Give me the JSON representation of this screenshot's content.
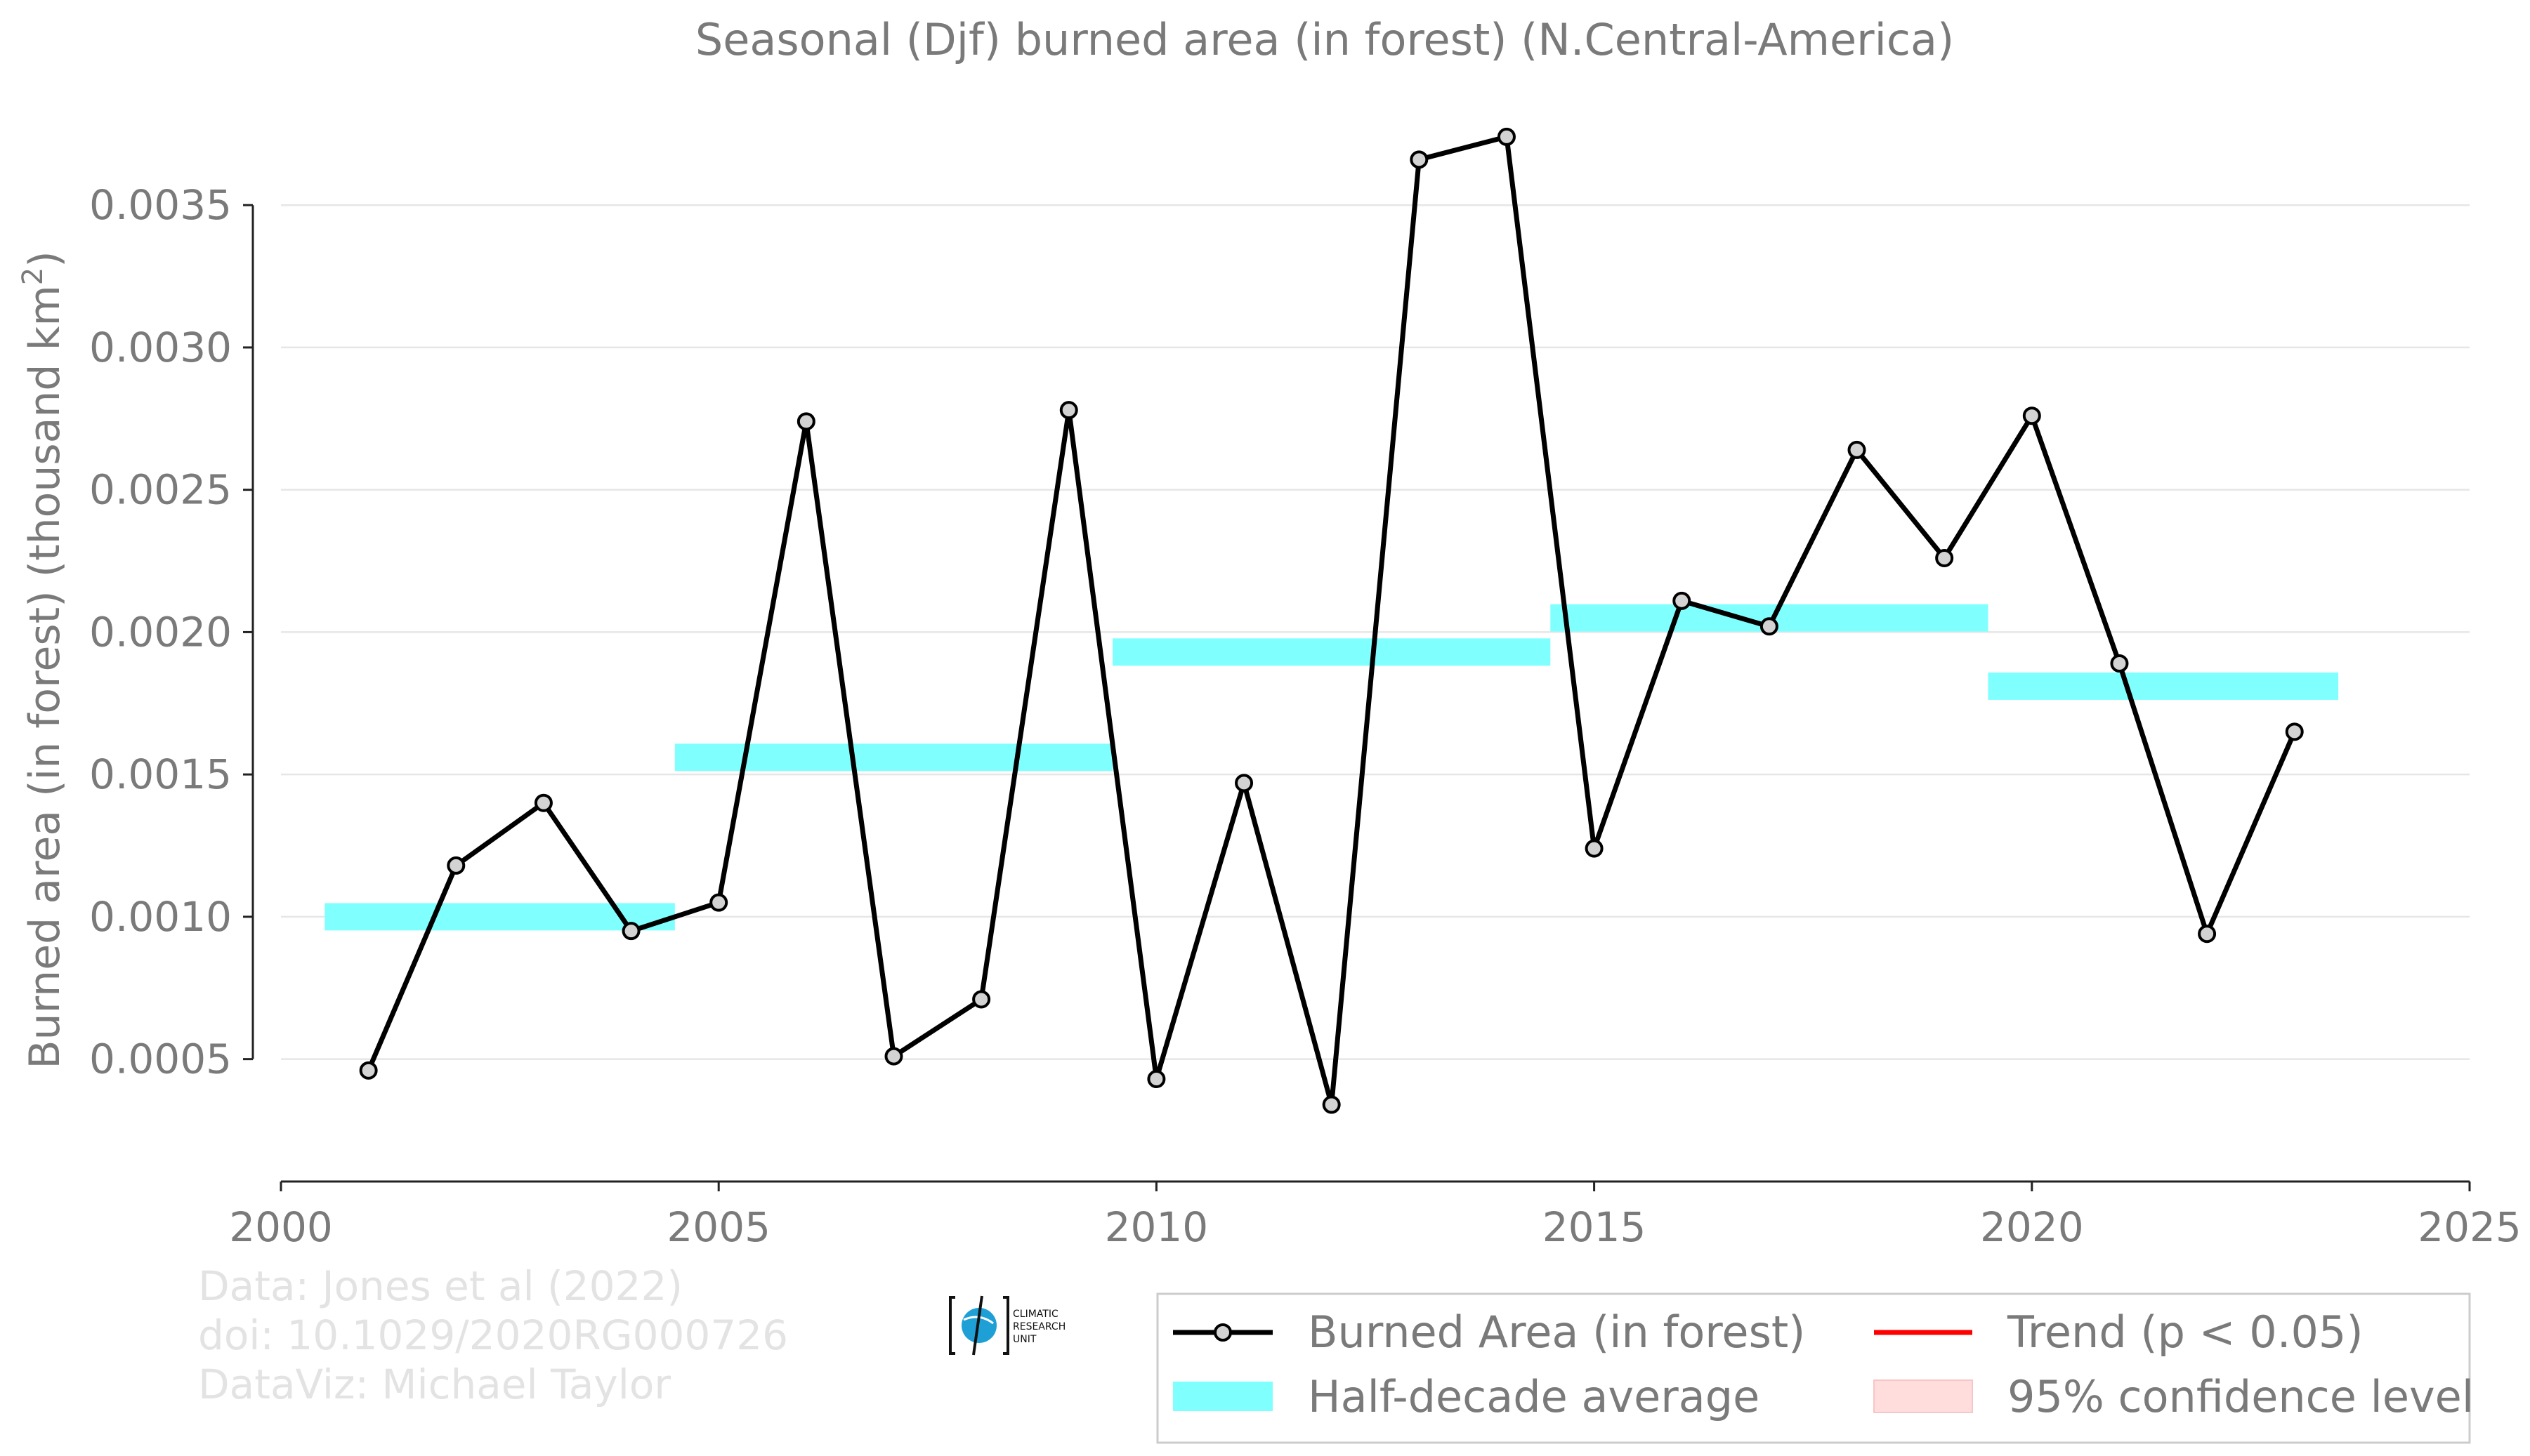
{
  "chart_data": {
    "type": "line",
    "title": "Seasonal (Djf) burned area (in forest) (N.Central-America)",
    "ylabel": "Burned area (in forest) (thousand km²)",
    "xlabel": "",
    "xlim": [
      2000,
      2025
    ],
    "ylim": [
      7e-05,
      0.0039
    ],
    "x_ticks": [
      2000,
      2005,
      2010,
      2015,
      2020,
      2025
    ],
    "y_ticks": [
      0.0005,
      0.001,
      0.0015,
      0.002,
      0.0025,
      0.003,
      0.0035
    ],
    "y_tick_labels": [
      "0.0005",
      "0.0010",
      "0.0015",
      "0.0020",
      "0.0025",
      "0.0030",
      "0.0035"
    ],
    "grid": "horizontal",
    "series": [
      {
        "name": "Burned Area (in forest)",
        "color": "#000000",
        "x": [
          2001,
          2002,
          2003,
          2004,
          2005,
          2006,
          2007,
          2008,
          2009,
          2010,
          2011,
          2012,
          2013,
          2014,
          2015,
          2016,
          2017,
          2018,
          2019,
          2020,
          2021,
          2022,
          2023
        ],
        "y": [
          0.00046,
          0.00118,
          0.0014,
          0.00095,
          0.00105,
          0.00274,
          0.00051,
          0.00071,
          0.00278,
          0.00043,
          0.00147,
          0.00034,
          0.00366,
          0.00374,
          0.00124,
          0.00211,
          0.00202,
          0.00264,
          0.00226,
          0.00276,
          0.00189,
          0.00094,
          0.00165
        ]
      }
    ],
    "half_decade_average": {
      "name": "Half-decade average",
      "color": "#80ffff",
      "segments": [
        {
          "x_start": 2000.5,
          "x_end": 2004.5,
          "y": 0.001
        },
        {
          "x_start": 2004.5,
          "x_end": 2009.5,
          "y": 0.00156
        },
        {
          "x_start": 2009.5,
          "x_end": 2014.5,
          "y": 0.00193
        },
        {
          "x_start": 2014.5,
          "x_end": 2019.5,
          "y": 0.00205
        },
        {
          "x_start": 2019.5,
          "x_end": 2023.5,
          "y": 0.00181
        }
      ]
    },
    "legend": {
      "placement": "bottom-right",
      "items": [
        {
          "label": "Burned Area (in forest)",
          "kind": "line-marker",
          "color": "#000000"
        },
        {
          "label": "Trend (p < 0.05)",
          "kind": "line",
          "color": "#ff0000"
        },
        {
          "label": "Half-decade average",
          "kind": "band",
          "color": "#80ffff"
        },
        {
          "label": "95% confidence level",
          "kind": "band",
          "color": "#ffdddd"
        }
      ]
    },
    "credits": [
      "Data: Jones et al (2022)",
      "doi: 10.1029/2020RG000726",
      "DataViz: Michael Taylor"
    ],
    "logo_text": [
      "CLIMATIC",
      "RESEARCH",
      "UNIT"
    ]
  }
}
